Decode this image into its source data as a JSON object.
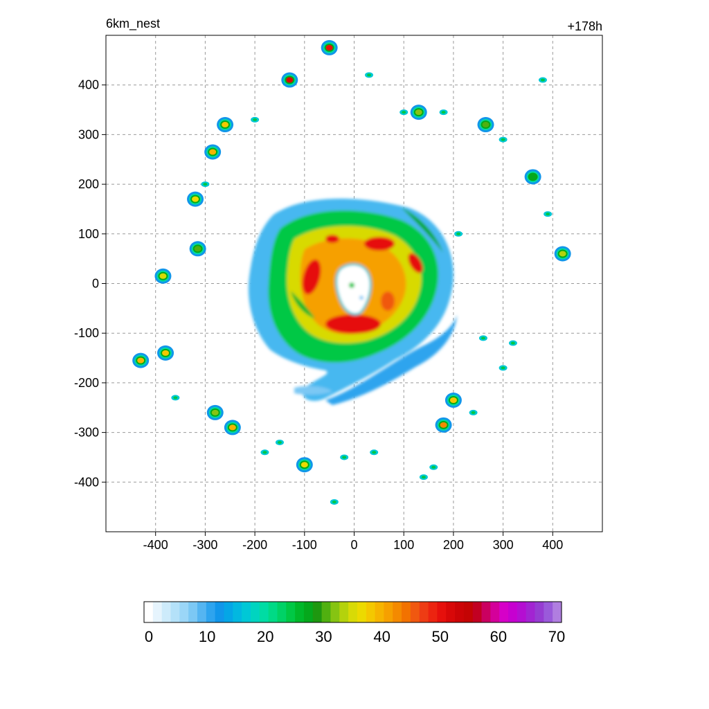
{
  "chart_data": {
    "type": "heatmap",
    "title_left": "6km_nest",
    "title_right": "+178h",
    "xlabel": "",
    "ylabel": "",
    "xlim": [
      -500,
      500
    ],
    "ylim": [
      -500,
      500
    ],
    "x_ticks": [
      -400,
      -300,
      -200,
      -100,
      0,
      100,
      200,
      300,
      400
    ],
    "y_ticks": [
      400,
      300,
      200,
      100,
      0,
      -100,
      -200,
      -300,
      -400
    ],
    "grid": true,
    "colorbar": {
      "orientation": "horizontal",
      "range": [
        0,
        70
      ],
      "ticks": [
        0,
        10,
        20,
        30,
        40,
        50,
        60,
        70
      ],
      "colors": [
        "#ffffff",
        "#e6f4fd",
        "#cdebfb",
        "#b4e1f9",
        "#9bd6f7",
        "#7cc8f4",
        "#55b5f1",
        "#2ea4ee",
        "#1196ea",
        "#05a6e6",
        "#02b8e0",
        "#00c8d6",
        "#00d4c0",
        "#00dca4",
        "#00da86",
        "#00d266",
        "#00c845",
        "#00b82a",
        "#05a81c",
        "#1e9810",
        "#50b010",
        "#86c412",
        "#b4d20c",
        "#d8da06",
        "#ecda00",
        "#f4c800",
        "#f6b400",
        "#f6a000",
        "#f48a00",
        "#f27200",
        "#f05810",
        "#ee3c14",
        "#ec2410",
        "#e6100c",
        "#d80808",
        "#cc0406",
        "#c40404",
        "#c20022",
        "#ca0060",
        "#d4009a",
        "#d600c8",
        "#c600d0",
        "#b40ed2",
        "#a224d2",
        "#963cd2",
        "#9a5ada",
        "#b07ee0"
      ]
    },
    "cells": [
      {
        "x": 0,
        "y": 0,
        "value": 6
      },
      {
        "x": 30,
        "y": 60,
        "value": 52
      },
      {
        "x": -60,
        "y": 10,
        "value": 50
      },
      {
        "x": -10,
        "y": -80,
        "value": 48
      },
      {
        "x": 80,
        "y": 20,
        "value": 38
      },
      {
        "x": -140,
        "y": 0,
        "value": 24
      },
      {
        "x": 150,
        "y": 30,
        "value": 18
      },
      {
        "x": 90,
        "y": -170,
        "value": 14
      },
      {
        "x": -130,
        "y": 410,
        "value": 52
      },
      {
        "x": -50,
        "y": 475,
        "value": 50
      },
      {
        "x": -385,
        "y": 15,
        "value": 35
      },
      {
        "x": 360,
        "y": 215,
        "value": 28
      },
      {
        "x": 420,
        "y": 60,
        "value": 34
      },
      {
        "x": -280,
        "y": -260,
        "value": 32
      },
      {
        "x": -245,
        "y": -290,
        "value": 40
      },
      {
        "x": -100,
        "y": -365,
        "value": 36
      },
      {
        "x": 180,
        "y": -285,
        "value": 42
      },
      {
        "x": 200,
        "y": -235,
        "value": 38
      },
      {
        "x": -430,
        "y": -155,
        "value": 40
      },
      {
        "x": -380,
        "y": -140,
        "value": 38
      },
      {
        "x": -260,
        "y": 320,
        "value": 38
      },
      {
        "x": -285,
        "y": 265,
        "value": 40
      },
      {
        "x": -320,
        "y": 170,
        "value": 36
      },
      {
        "x": 265,
        "y": 320,
        "value": 30
      },
      {
        "x": 130,
        "y": 345,
        "value": 32
      },
      {
        "x": -315,
        "y": 70,
        "value": 30
      }
    ]
  }
}
